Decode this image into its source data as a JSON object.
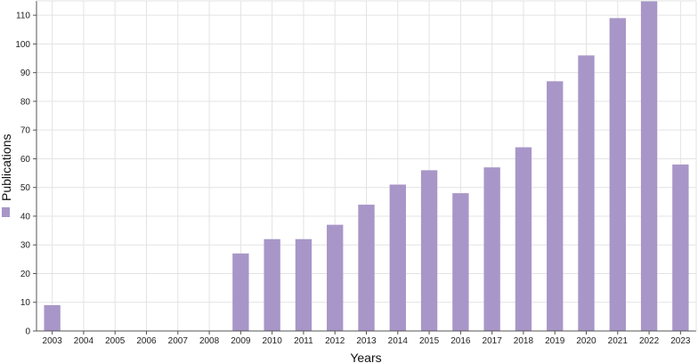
{
  "chart_data": {
    "type": "bar",
    "categories": [
      "2003",
      "2004",
      "2005",
      "2006",
      "2007",
      "2008",
      "2009",
      "2010",
      "2011",
      "2012",
      "2013",
      "2014",
      "2015",
      "2016",
      "2017",
      "2018",
      "2019",
      "2020",
      "2021",
      "2022",
      "2023"
    ],
    "series": [
      {
        "name": "Publications",
        "values": [
          9,
          0,
          0,
          0,
          0,
          0,
          27,
          32,
          32,
          37,
          44,
          51,
          56,
          48,
          57,
          64,
          87,
          96,
          109,
          115,
          58
        ]
      }
    ],
    "title": "",
    "xlabel": "Years",
    "ylabel": "Publications",
    "ylim": [
      0,
      115
    ],
    "yticks": [
      0,
      10,
      20,
      30,
      40,
      50,
      60,
      70,
      80,
      90,
      100,
      110
    ],
    "grid": true,
    "legend_position": "left",
    "colors": {
      "bar": "#a896c8",
      "grid": "#e3e3e3",
      "axis": "#555555"
    }
  }
}
